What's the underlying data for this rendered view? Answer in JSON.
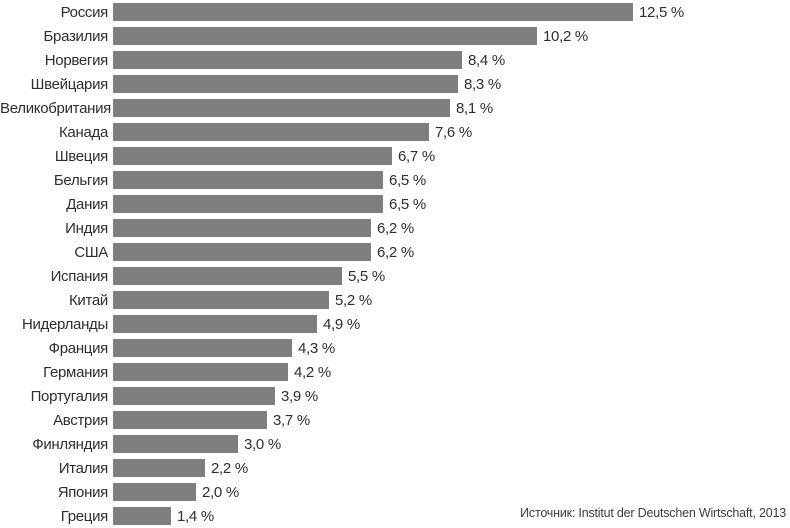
{
  "chart_data": {
    "type": "bar",
    "orientation": "horizontal",
    "title": "",
    "xlabel": "",
    "ylabel": "",
    "unit": "%",
    "xlim": [
      0,
      13
    ],
    "grid": false,
    "legend": null,
    "bar_color": "#7e7e80",
    "categories": [
      "Россия",
      "Бразилия",
      "Норвегия",
      "Швейцария",
      "Великобритания",
      "Канада",
      "Швеция",
      "Бельгия",
      "Дания",
      "Индия",
      "США",
      "Испания",
      "Китай",
      "Нидерланды",
      "Франция",
      "Германия",
      "Португалия",
      "Австрия",
      "Финляндия",
      "Италия",
      "Япония",
      "Греция"
    ],
    "values": [
      12.5,
      10.2,
      8.4,
      8.3,
      8.1,
      7.6,
      6.7,
      6.5,
      6.5,
      6.2,
      6.2,
      5.5,
      5.2,
      4.9,
      4.3,
      4.2,
      3.9,
      3.7,
      3.0,
      2.2,
      2.0,
      1.4
    ],
    "display_values": [
      "12,5 %",
      "10,2 %",
      "8,4 %",
      "8,3 %",
      "8,1 %",
      "7,6 %",
      "6,7 %",
      "6,5 %",
      "6,5 %",
      "6,2 %",
      "6,2 %",
      "5,5 %",
      "5,2 %",
      "4,9 %",
      "4,3 %",
      "4,2 %",
      "3,9 %",
      "3,7 %",
      "3,0 %",
      "2,2 %",
      "2,0 %",
      "1,4 %"
    ]
  },
  "source": "Источник: Institut der Deutschen Wirtschaft, 2013"
}
